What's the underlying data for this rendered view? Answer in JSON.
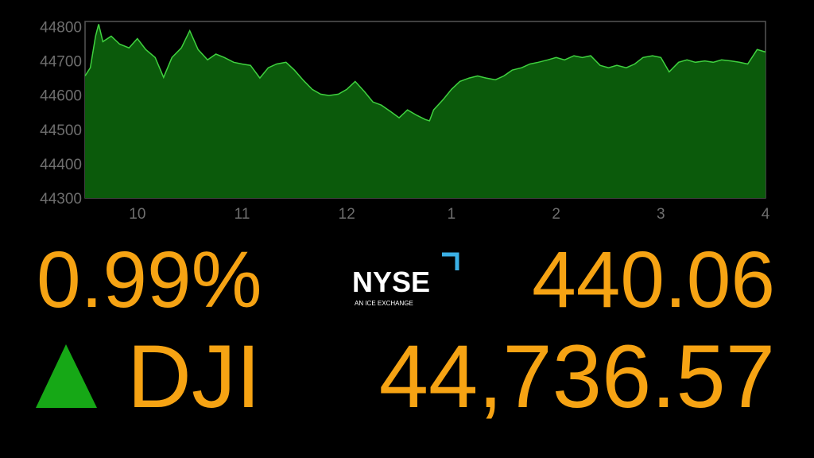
{
  "chart_data": {
    "type": "area",
    "x": [
      9.5,
      9.55,
      9.6,
      9.63,
      9.67,
      9.75,
      9.83,
      9.92,
      10.0,
      10.08,
      10.17,
      10.25,
      10.33,
      10.42,
      10.5,
      10.58,
      10.67,
      10.75,
      10.83,
      10.92,
      11.0,
      11.08,
      11.17,
      11.25,
      11.33,
      11.42,
      11.5,
      11.58,
      11.67,
      11.75,
      11.83,
      11.92,
      12.0,
      12.08,
      12.17,
      12.25,
      12.33,
      12.42,
      12.5,
      12.58,
      12.67,
      12.75,
      12.79,
      12.83,
      12.92,
      13.0,
      13.08,
      13.17,
      13.25,
      13.33,
      13.42,
      13.5,
      13.58,
      13.67,
      13.75,
      13.83,
      13.92,
      14.0,
      14.08,
      14.17,
      14.25,
      14.33,
      14.42,
      14.5,
      14.58,
      14.67,
      14.75,
      14.83,
      14.92,
      15.0,
      15.08,
      15.17,
      15.25,
      15.33,
      15.42,
      15.5,
      15.58,
      15.67,
      15.75,
      15.83,
      15.92,
      16.0
    ],
    "values": [
      44656,
      44680,
      44772,
      44807,
      44756,
      44772,
      44749,
      44738,
      44765,
      44733,
      44710,
      44652,
      44710,
      44738,
      44788,
      44733,
      44703,
      44720,
      44710,
      44696,
      44691,
      44687,
      44650,
      44680,
      44691,
      44696,
      44673,
      44645,
      44617,
      44603,
      44599,
      44603,
      44617,
      44640,
      44610,
      44580,
      44571,
      44552,
      44534,
      44557,
      44541,
      44529,
      44525,
      44557,
      44587,
      44617,
      44640,
      44650,
      44656,
      44650,
      44645,
      44656,
      44673,
      44680,
      44691,
      44696,
      44703,
      44710,
      44703,
      44715,
      44710,
      44715,
      44687,
      44680,
      44687,
      44680,
      44691,
      44710,
      44715,
      44710,
      44668,
      44696,
      44703,
      44696,
      44700,
      44696,
      44703,
      44700,
      44696,
      44691,
      44733,
      44726
    ],
    "color": "#0b5a0b",
    "line_color": "#3fd13f",
    "xlim": [
      9.5,
      16
    ],
    "ylim": [
      44300,
      44815
    ],
    "xticks": [
      10,
      11,
      12,
      {
        "value": 13,
        "label": "1"
      },
      {
        "value": 14,
        "label": "2"
      },
      {
        "value": 15,
        "label": "3"
      },
      {
        "value": 16,
        "label": "4"
      }
    ],
    "yticks": [
      44300,
      44400,
      44500,
      44600,
      44700,
      44800
    ]
  },
  "ticker": {
    "change": "0.99%",
    "points": "440.06",
    "symbol": "DJI",
    "level": "44,736.57"
  },
  "logo": {
    "name": "NYSE",
    "tagline": "AN ICE EXCHANGE"
  }
}
